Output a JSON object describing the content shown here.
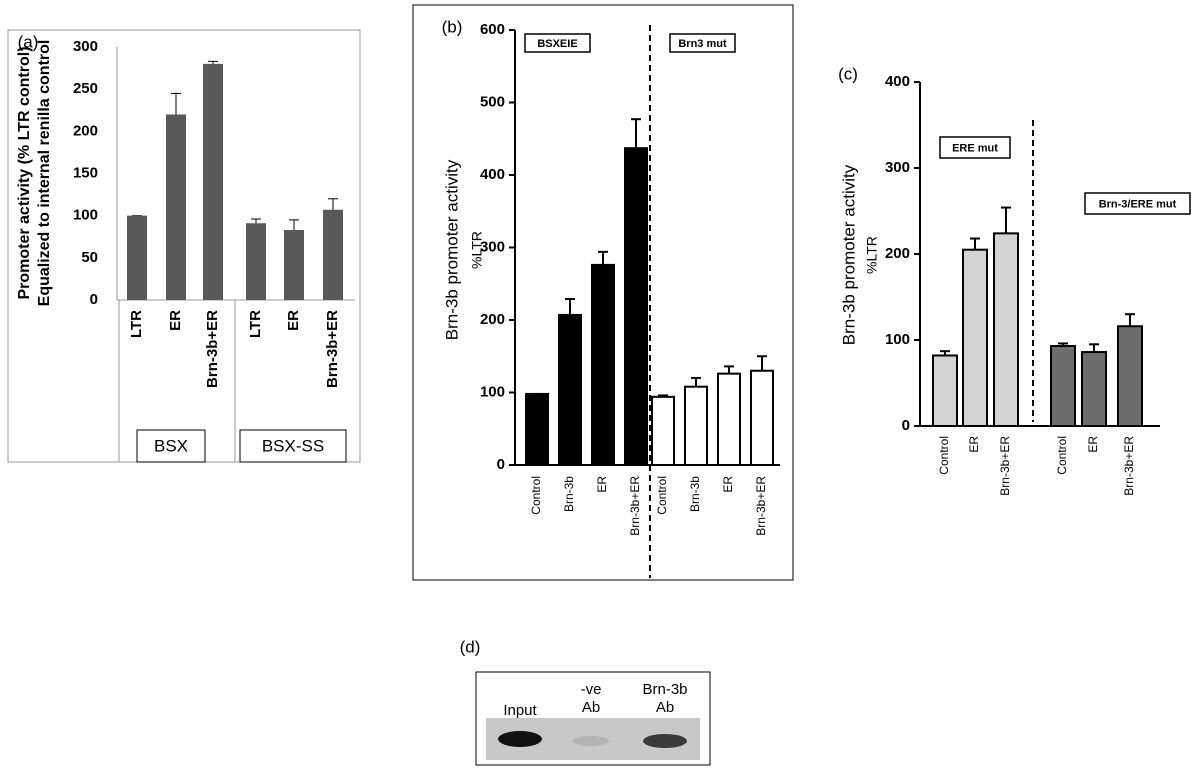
{
  "chart_data": [
    {
      "type": "bar",
      "panel_label": "(a)",
      "ylabel": [
        "Promoter activity (% LTR control)",
        "Equalized to internal renilla control"
      ],
      "categories": [
        "LTR",
        "ER",
        "Brn-3b+ER",
        "LTR",
        "ER",
        "Brn-3b+ER"
      ],
      "values": [
        100,
        220,
        280,
        91,
        83,
        107
      ],
      "errors": [
        0,
        25,
        3,
        5,
        12,
        13
      ],
      "colors": [
        "#595959",
        "#595959",
        "#595959",
        "#595959",
        "#595959",
        "#595959"
      ],
      "ylim": [
        0,
        300
      ],
      "yticks": [
        0,
        50,
        100,
        150,
        200,
        250,
        300
      ],
      "groups": [
        "BSX",
        "BSX-SS"
      ]
    },
    {
      "type": "bar",
      "panel_label": "(b)",
      "ylabel": [
        "Brn-3b promoter activity",
        "%LTR"
      ],
      "categories": [
        "Control",
        "Brn-3b",
        "ER",
        "Brn-3b+ER",
        "Control",
        "Brn-3b",
        "ER",
        "Brn-3b+ER"
      ],
      "values": [
        98,
        207,
        276,
        437,
        94,
        108,
        126,
        130
      ],
      "errors": [
        0,
        22,
        18,
        40,
        2,
        12,
        10,
        20
      ],
      "colors": [
        "#000000",
        "#000000",
        "#000000",
        "#000000",
        "#ffffff",
        "#ffffff",
        "#ffffff",
        "#ffffff"
      ],
      "ylim": [
        0,
        600
      ],
      "yticks": [
        0,
        100,
        200,
        300,
        400,
        500,
        600
      ],
      "groups": [
        "BSXEIE",
        "Brn3 mut"
      ]
    },
    {
      "type": "bar",
      "panel_label": "(c)",
      "ylabel": [
        "Brn-3b promoter activity",
        "%LTR"
      ],
      "categories": [
        "Control",
        "ER",
        "Brn-3b+ER",
        "Control",
        "ER",
        "Brn-3b+ER"
      ],
      "values": [
        82,
        205,
        224,
        93,
        86,
        116
      ],
      "errors": [
        5,
        13,
        30,
        3,
        9,
        14
      ],
      "colors": [
        "#d3d3d3",
        "#d3d3d3",
        "#d3d3d3",
        "#6e6e6e",
        "#6e6e6e",
        "#6e6e6e"
      ],
      "ylim": [
        0,
        400
      ],
      "yticks": [
        0,
        100,
        200,
        300,
        400
      ],
      "groups": [
        "ERE mut",
        "Brn-3/ERE mut"
      ]
    }
  ],
  "gel": {
    "panel_label": "(d)",
    "lanes": [
      [
        "Input"
      ],
      [
        "-ve",
        "Ab"
      ],
      [
        "Brn-3b",
        "Ab"
      ]
    ]
  }
}
